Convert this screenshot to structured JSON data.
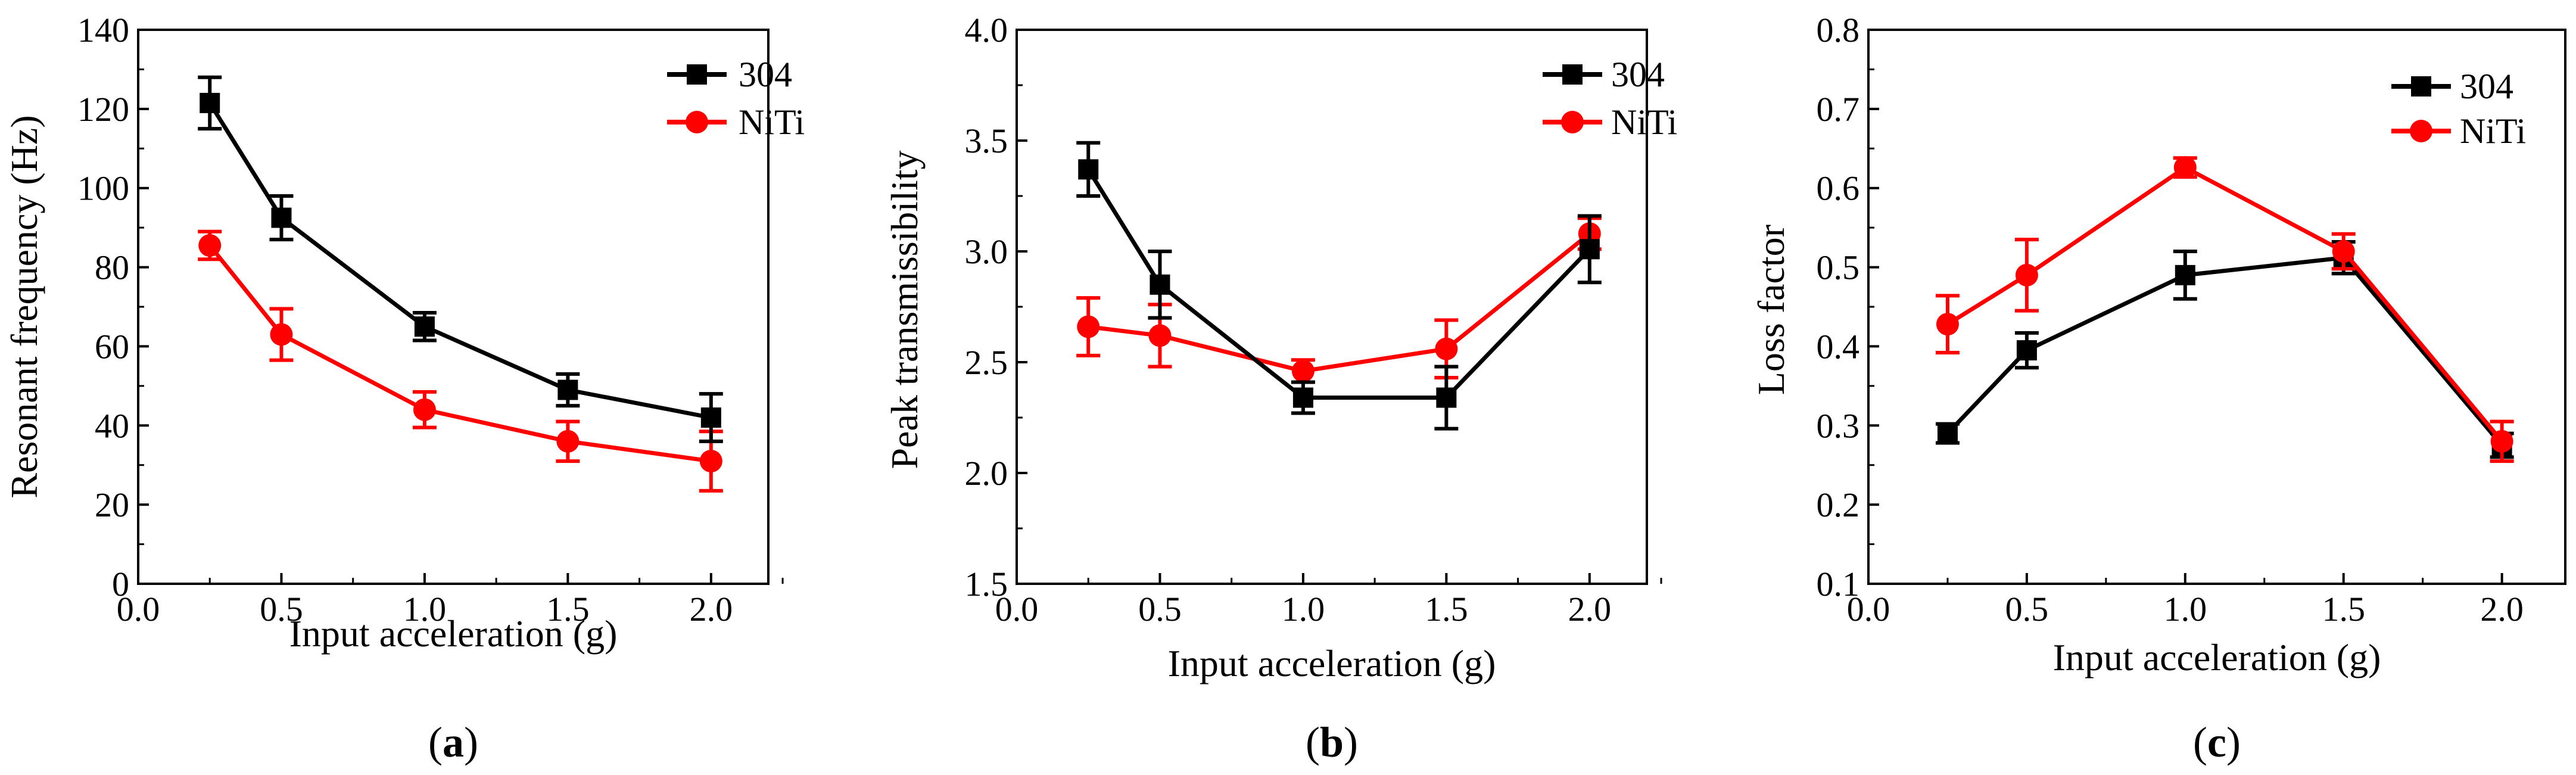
{
  "chart_data": [
    {
      "type": "line",
      "panel_label": "a",
      "xlabel": "Input acceleration (g)",
      "ylabel": "Resonant frequency (Hz)",
      "xlim": [
        0.0,
        2.2
      ],
      "ylim": [
        0,
        140
      ],
      "xticks": [
        "0.0",
        "0.5",
        "1.0",
        "1.5",
        "2.0"
      ],
      "yticks": [
        "0",
        "20",
        "40",
        "60",
        "80",
        "100",
        "120",
        "140"
      ],
      "x": [
        0.25,
        0.5,
        1.0,
        1.5,
        2.0
      ],
      "legend_position": "top-right",
      "series": [
        {
          "name": "304",
          "color": "#000000",
          "marker": "square",
          "values": [
            121.5,
            92.5,
            65,
            49,
            42
          ],
          "errors": [
            6.5,
            5.5,
            3.5,
            4,
            6
          ]
        },
        {
          "name": "NiTi",
          "color": "#ff0000",
          "marker": "circle",
          "values": [
            85.5,
            63,
            44,
            36,
            31
          ],
          "errors": [
            3.5,
            6.5,
            4.5,
            5,
            7.5
          ]
        }
      ]
    },
    {
      "type": "line",
      "panel_label": "b",
      "xlabel": "Input acceleration (g)",
      "ylabel": "Peak transmissibility",
      "xlim": [
        0.0,
        2.2
      ],
      "ylim": [
        1.5,
        4.0
      ],
      "xticks": [
        "0.0",
        "0.5",
        "1.0",
        "1.5",
        "2.0"
      ],
      "yticks": [
        "1.5",
        "2.0",
        "2.5",
        "3.0",
        "3.5",
        "4.0"
      ],
      "x": [
        0.25,
        0.5,
        1.0,
        1.5,
        2.0
      ],
      "legend_position": "top-right",
      "series": [
        {
          "name": "304",
          "color": "#000000",
          "marker": "square",
          "values": [
            3.37,
            2.85,
            2.34,
            2.34,
            3.01
          ],
          "errors": [
            0.12,
            0.15,
            0.07,
            0.14,
            0.15
          ]
        },
        {
          "name": "NiTi",
          "color": "#ff0000",
          "marker": "circle",
          "values": [
            2.66,
            2.62,
            2.46,
            2.56,
            3.08
          ],
          "errors": [
            0.13,
            0.14,
            0.05,
            0.13,
            0.07
          ]
        }
      ]
    },
    {
      "type": "line",
      "panel_label": "c",
      "xlabel": "Input acceleration (g)",
      "ylabel": "Loss factor",
      "xlim": [
        0.0,
        2.2
      ],
      "ylim": [
        0.1,
        0.8
      ],
      "xticks": [
        "0.0",
        "0.5",
        "1.0",
        "1.5",
        "2.0"
      ],
      "yticks": [
        "0.1",
        "0.2",
        "0.3",
        "0.4",
        "0.5",
        "0.6",
        "0.7",
        "0.8"
      ],
      "x": [
        0.25,
        0.5,
        1.0,
        1.5,
        2.0
      ],
      "legend_position": "top-right",
      "series": [
        {
          "name": "304",
          "color": "#000000",
          "marker": "square",
          "values": [
            0.29,
            0.395,
            0.49,
            0.512,
            0.275
          ],
          "errors": [
            0.012,
            0.022,
            0.03,
            0.02,
            0.015
          ]
        },
        {
          "name": "NiTi",
          "color": "#ff0000",
          "marker": "circle",
          "values": [
            0.428,
            0.49,
            0.626,
            0.52,
            0.28
          ],
          "errors": [
            0.036,
            0.045,
            0.012,
            0.022,
            0.025
          ]
        }
      ]
    }
  ]
}
